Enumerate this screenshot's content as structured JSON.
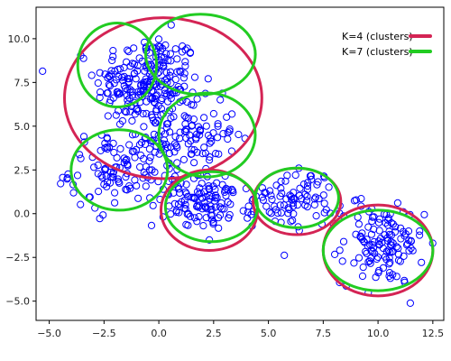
{
  "chart_data": {
    "type": "scatter",
    "title": "",
    "xlabel": "",
    "ylabel": "",
    "xlim": [
      -5.6,
      13.0
    ],
    "ylim": [
      -6.1,
      11.8
    ],
    "xticks": [
      -5.0,
      -2.5,
      0.0,
      2.5,
      5.0,
      7.5,
      10.0,
      12.5
    ],
    "xtick_labels": [
      "−5.0",
      "−2.5",
      "0.0",
      "2.5",
      "5.0",
      "7.5",
      "10.0",
      "12.5"
    ],
    "yticks": [
      -5.0,
      -2.5,
      0.0,
      2.5,
      5.0,
      7.5,
      10.0
    ],
    "ytick_labels": [
      "−5.0",
      "−2.5",
      "0.0",
      "2.5",
      "5.0",
      "7.5",
      "10.0"
    ],
    "grid": false,
    "legend_position": "top-right",
    "legend": [
      {
        "label": "K=4 (clusters)",
        "color": "#d42454"
      },
      {
        "label": "K=7 (clusters)",
        "color": "#22cc22"
      }
    ],
    "point_color": "#0000ff",
    "point_clusters": [
      {
        "cx": -0.5,
        "cy": 7.5,
        "sx": 1.4,
        "sy": 1.6,
        "n": 230
      },
      {
        "cx": 1.5,
        "cy": 4.5,
        "sx": 1.2,
        "sy": 1.2,
        "n": 90
      },
      {
        "cx": -1.5,
        "cy": 2.5,
        "sx": 1.5,
        "sy": 1.3,
        "n": 130
      },
      {
        "cx": 2.3,
        "cy": 0.6,
        "sx": 1.2,
        "sy": 0.9,
        "n": 110
      },
      {
        "cx": 6.2,
        "cy": 0.9,
        "sx": 1.1,
        "sy": 1.0,
        "n": 85
      },
      {
        "cx": 10.2,
        "cy": -1.8,
        "sx": 1.1,
        "sy": 1.3,
        "n": 130
      }
    ],
    "k4_clusters": [
      {
        "cx": 0.2,
        "cy": 6.6,
        "rx": 4.5,
        "ry": 4.6
      },
      {
        "cx": 2.3,
        "cy": 0.2,
        "rx": 2.2,
        "ry": 2.3
      },
      {
        "cx": 6.3,
        "cy": 0.7,
        "rx": 2.0,
        "ry": 1.9
      },
      {
        "cx": 10.0,
        "cy": -2.1,
        "rx": 2.5,
        "ry": 2.6
      }
    ],
    "k7_clusters": [
      {
        "cx": -1.9,
        "cy": 8.5,
        "rx": 1.8,
        "ry": 2.4
      },
      {
        "cx": 1.9,
        "cy": 9.1,
        "rx": 2.5,
        "ry": 2.3
      },
      {
        "cx": 2.2,
        "cy": 4.5,
        "rx": 2.2,
        "ry": 2.4
      },
      {
        "cx": -1.8,
        "cy": 2.5,
        "rx": 2.2,
        "ry": 2.3
      },
      {
        "cx": 2.4,
        "cy": 0.4,
        "rx": 2.1,
        "ry": 2.0
      },
      {
        "cx": 6.3,
        "cy": 0.9,
        "rx": 1.9,
        "ry": 1.7
      },
      {
        "cx": 10.0,
        "cy": -2.1,
        "rx": 2.5,
        "ry": 2.3
      }
    ]
  }
}
